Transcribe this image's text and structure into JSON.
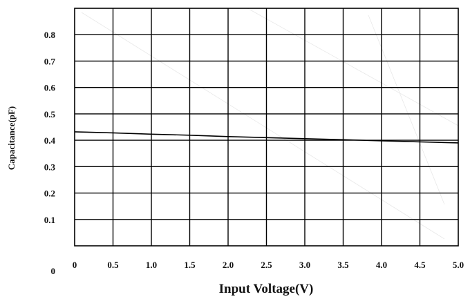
{
  "chart_data": {
    "type": "line",
    "title": "",
    "xlabel": "Input Voltage(V)",
    "ylabel": "Capacitance(pF)",
    "x_ticks": [
      "0",
      "0.5",
      "1.0",
      "1.5",
      "2.0",
      "2.5",
      "3.0",
      "3.5",
      "4.0",
      "4.5",
      "5.0"
    ],
    "y_ticks": [
      "0",
      "0.1",
      "0.2",
      "0.3",
      "0.4",
      "0.5",
      "0.6",
      "0.7",
      "0.8"
    ],
    "xlim": [
      0,
      5.0
    ],
    "ylim": [
      0,
      0.9
    ],
    "grid": true,
    "series": [
      {
        "x": [
          0,
          0.5,
          1.0,
          1.5,
          2.0,
          2.5,
          3.0,
          3.5,
          4.0,
          4.5,
          5.0
        ],
        "y": [
          0.432,
          0.428,
          0.423,
          0.419,
          0.414,
          0.41,
          0.406,
          0.402,
          0.398,
          0.394,
          0.39
        ],
        "color": "#000000"
      }
    ]
  }
}
